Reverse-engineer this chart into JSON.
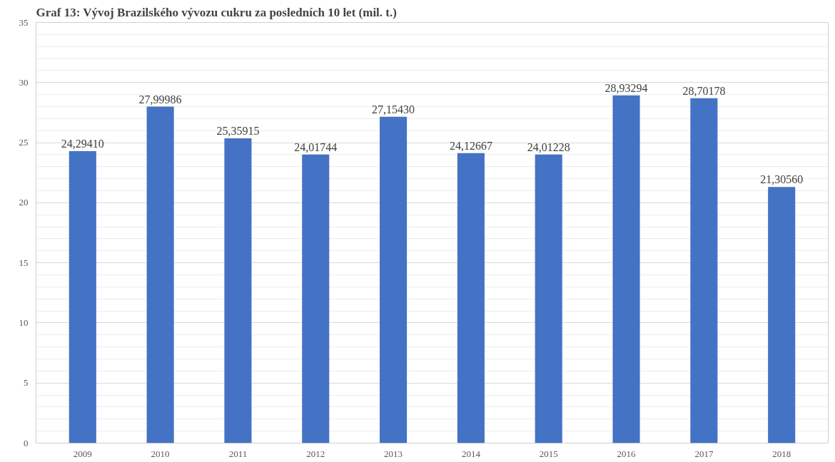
{
  "chart_data": {
    "type": "bar",
    "title": "Graf 13: Vývoj Brazilského vývozu cukru za posledních 10 let (mil. t.)",
    "categories": [
      "2009",
      "2010",
      "2011",
      "2012",
      "2013",
      "2014",
      "2015",
      "2016",
      "2017",
      "2018"
    ],
    "values": [
      24.2941,
      27.99986,
      25.35915,
      24.01744,
      27.1543,
      24.12667,
      24.01228,
      28.93294,
      28.70178,
      21.3056
    ],
    "value_labels": [
      "24,29410",
      "27,99986",
      "25,35915",
      "24,01744",
      "27,15430",
      "24,12667",
      "24,01228",
      "28,93294",
      "28,70178",
      "21,30560"
    ],
    "color": "#4472c4",
    "ylim": [
      0,
      35
    ],
    "yticks": [
      0,
      5,
      10,
      15,
      20,
      25,
      30,
      35
    ],
    "grid": "y"
  }
}
